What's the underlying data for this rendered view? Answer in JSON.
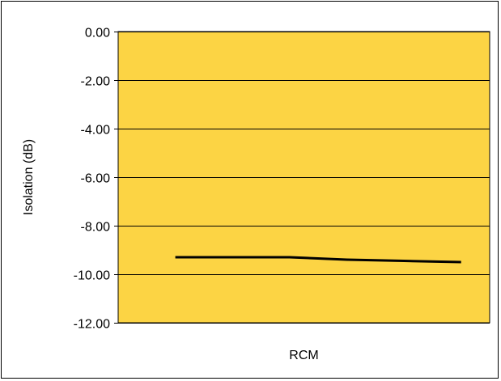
{
  "chart_data": {
    "type": "line",
    "title": "",
    "xlabel": "RCM",
    "ylabel": "Isolation (dB)",
    "ylim": [
      -12,
      0
    ],
    "yticks": [
      "0.00",
      "-2.00",
      "-4.00",
      "-6.00",
      "-8.00",
      "-10.00",
      "-12.00"
    ],
    "ytick_values": [
      0,
      -2,
      -4,
      -6,
      -8,
      -10,
      -12
    ],
    "x": [
      1,
      2,
      3,
      4,
      5,
      6
    ],
    "xlim": [
      0,
      6.5
    ],
    "series": [
      {
        "values": [
          -9.3,
          -9.3,
          -9.3,
          -9.4,
          -9.45,
          -9.5
        ]
      }
    ],
    "grid": true,
    "colors": {
      "plot_background": "#FCD444",
      "line": "#000000",
      "grid": "#000000"
    }
  }
}
